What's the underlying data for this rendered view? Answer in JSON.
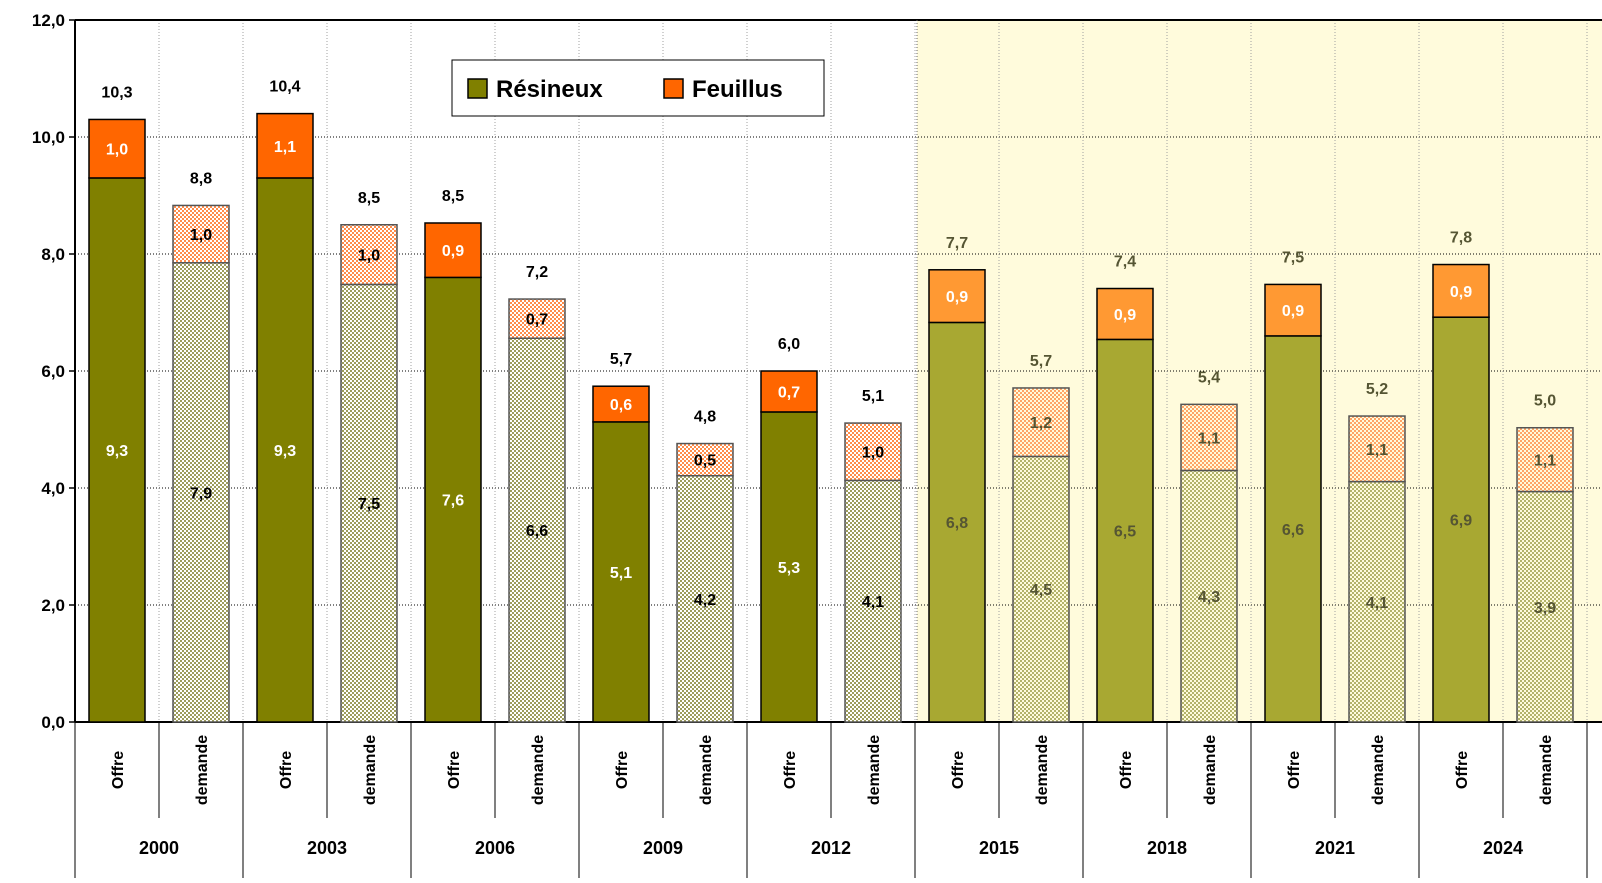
{
  "chart_data": {
    "type": "bar",
    "stacked": true,
    "ylim": [
      0,
      12
    ],
    "y_ticks": [
      "0,0",
      "2,0",
      "4,0",
      "6,0",
      "8,0",
      "10,0",
      "12,0"
    ],
    "y_tick_values": [
      0,
      2,
      4,
      6,
      8,
      10,
      12
    ],
    "grid": true,
    "legend_position": "top-center",
    "legend": [
      "Résineux",
      "Feuillus"
    ],
    "series_names": [
      "Résineux",
      "Feuillus"
    ],
    "groups": [
      "2000",
      "2003",
      "2006",
      "2009",
      "2012",
      "2015",
      "2018",
      "2021",
      "2024"
    ],
    "subcategories": [
      "Offre",
      "demande"
    ],
    "forecast_from_group": "2015",
    "bars": [
      {
        "group": "2000",
        "kind": "Offre",
        "resineux": 9.3,
        "feuillus": 1.0,
        "total": 10.3,
        "label_resineux": "9,3",
        "label_feuillus": "1,0",
        "label_total": "10,3"
      },
      {
        "group": "2000",
        "kind": "demande",
        "resineux": 7.85,
        "feuillus": 0.98,
        "total": 8.83,
        "label_resineux": "7,9",
        "label_feuillus": "1,0",
        "label_total": "8,8"
      },
      {
        "group": "2003",
        "kind": "Offre",
        "resineux": 9.3,
        "feuillus": 1.1,
        "total": 10.4,
        "label_resineux": "9,3",
        "label_feuillus": "1,1",
        "label_total": "10,4"
      },
      {
        "group": "2003",
        "kind": "demande",
        "resineux": 7.48,
        "feuillus": 1.02,
        "total": 8.5,
        "label_resineux": "7,5",
        "label_feuillus": "1,0",
        "label_total": "8,5"
      },
      {
        "group": "2006",
        "kind": "Offre",
        "resineux": 7.6,
        "feuillus": 0.93,
        "total": 8.53,
        "label_resineux": "7,6",
        "label_feuillus": "0,9",
        "label_total": "8,5"
      },
      {
        "group": "2006",
        "kind": "demande",
        "resineux": 6.56,
        "feuillus": 0.67,
        "total": 7.23,
        "label_resineux": "6,6",
        "label_feuillus": "0,7",
        "label_total": "7,2"
      },
      {
        "group": "2009",
        "kind": "Offre",
        "resineux": 5.13,
        "feuillus": 0.61,
        "total": 5.74,
        "label_resineux": "5,1",
        "label_feuillus": "0,6",
        "label_total": "5,7"
      },
      {
        "group": "2009",
        "kind": "demande",
        "resineux": 4.21,
        "feuillus": 0.55,
        "total": 4.76,
        "label_resineux": "4,2",
        "label_feuillus": "0,5",
        "label_total": "4,8"
      },
      {
        "group": "2012",
        "kind": "Offre",
        "resineux": 5.3,
        "feuillus": 0.7,
        "total": 6.0,
        "label_resineux": "5,3",
        "label_feuillus": "0,7",
        "label_total": "6,0"
      },
      {
        "group": "2012",
        "kind": "demande",
        "resineux": 4.13,
        "feuillus": 0.98,
        "total": 5.11,
        "label_resineux": "4,1",
        "label_feuillus": "1,0",
        "label_total": "5,1"
      },
      {
        "group": "2015",
        "kind": "Offre",
        "resineux": 6.83,
        "feuillus": 0.9,
        "total": 7.73,
        "label_resineux": "6,8",
        "label_feuillus": "0,9",
        "label_total": "7,7"
      },
      {
        "group": "2015",
        "kind": "demande",
        "resineux": 4.54,
        "feuillus": 1.17,
        "total": 5.71,
        "label_resineux": "4,5",
        "label_feuillus": "1,2",
        "label_total": "5,7"
      },
      {
        "group": "2018",
        "kind": "Offre",
        "resineux": 6.54,
        "feuillus": 0.87,
        "total": 7.41,
        "label_resineux": "6,5",
        "label_feuillus": "0,9",
        "label_total": "7,4"
      },
      {
        "group": "2018",
        "kind": "demande",
        "resineux": 4.3,
        "feuillus": 1.13,
        "total": 5.43,
        "label_resineux": "4,3",
        "label_feuillus": "1,1",
        "label_total": "5,4"
      },
      {
        "group": "2021",
        "kind": "Offre",
        "resineux": 6.6,
        "feuillus": 0.88,
        "total": 7.48,
        "label_resineux": "6,6",
        "label_feuillus": "0,9",
        "label_total": "7,5"
      },
      {
        "group": "2021",
        "kind": "demande",
        "resineux": 4.11,
        "feuillus": 1.12,
        "total": 5.23,
        "label_resineux": "4,1",
        "label_feuillus": "1,1",
        "label_total": "5,2"
      },
      {
        "group": "2024",
        "kind": "Offre",
        "resineux": 6.92,
        "feuillus": 0.9,
        "total": 7.82,
        "label_resineux": "6,9",
        "label_feuillus": "0,9",
        "label_total": "7,8"
      },
      {
        "group": "2024",
        "kind": "demande",
        "resineux": 3.94,
        "feuillus": 1.09,
        "total": 5.03,
        "label_resineux": "3,9",
        "label_feuillus": "1,1",
        "label_total": "5,0"
      }
    ],
    "colors": {
      "resineux_historic": "#808000",
      "feuillus_historic": "#ff6600",
      "resineux_forecast": "#a8a832",
      "feuillus_forecast": "#ff9933",
      "forecast_background": "#fffbdc",
      "demande_resineux_dots": "#9c9c5c",
      "demande_feuillus_dots": "#ff8c4a",
      "total_label_historic": "#000000",
      "total_label_forecast": "#555533",
      "inner_label_forecast": "#555533"
    }
  }
}
